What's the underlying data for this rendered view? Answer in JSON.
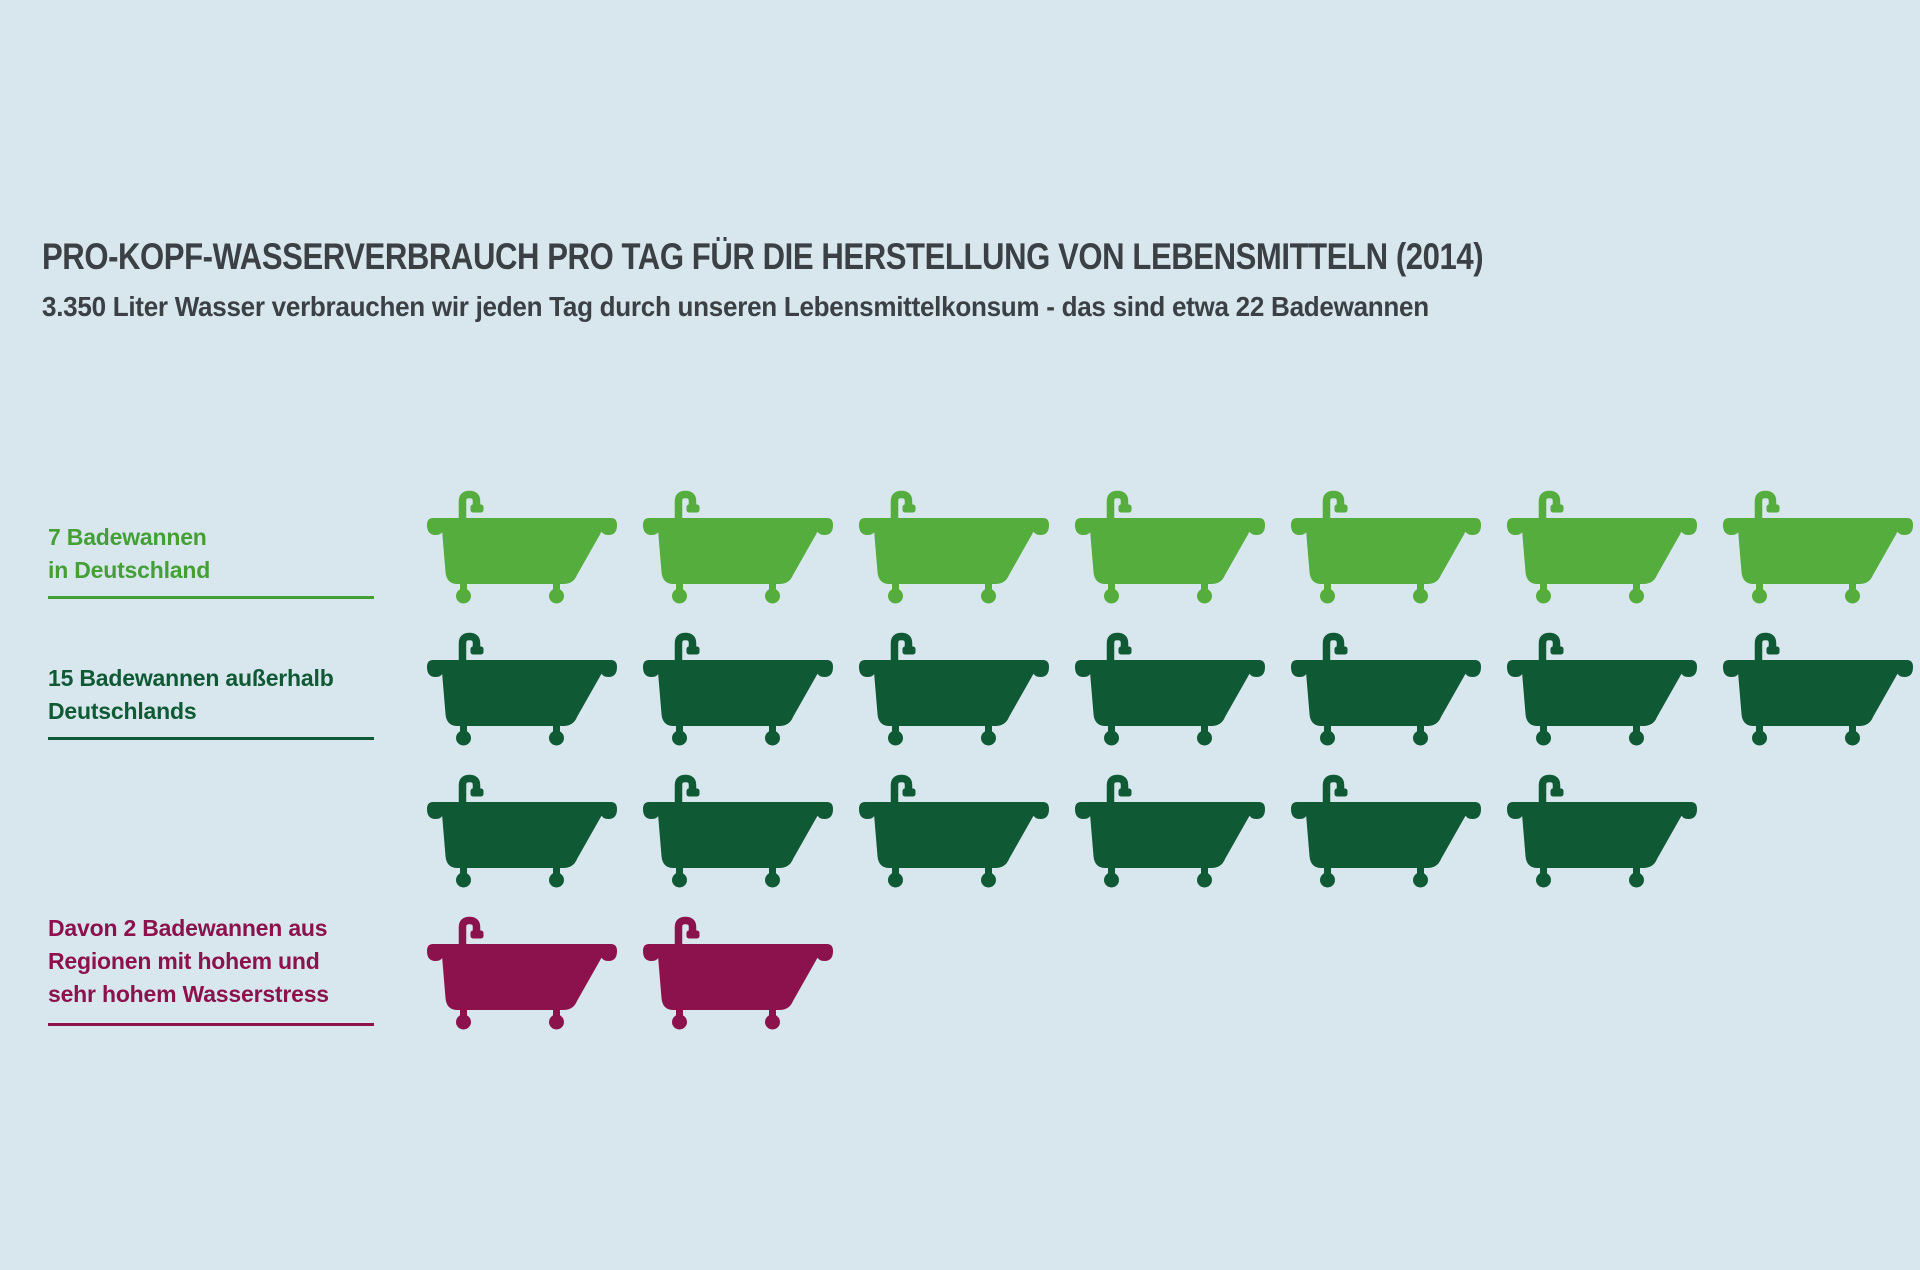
{
  "page": {
    "background": "#d8e7ed",
    "text_color": "#3b4045"
  },
  "header": {
    "title": "PRO-KOPF-WASSERVERBRAUCH PRO TAG FÜR DIE HERSTELLUNG VON LEBENSMITTELN (2014)",
    "subtitle": "3.350 Liter Wasser verbrauchen wir jeden Tag durch unseren Lebensmittelkonsum - das sind etwa 22 Badewannen"
  },
  "labels": [
    {
      "text": "7 Badewannen\nin Deutschland",
      "color": "#44a036"
    },
    {
      "text": "15 Badewannen außerhalb\nDeutschlands",
      "color": "#0f5a35"
    },
    {
      "text": "Davon 2 Badewannen aus\nRegionen mit hohem und\nsehr hohem Wasserstress",
      "color": "#8c124e"
    }
  ],
  "chart_data": {
    "type": "pictogram",
    "icon": "bathtub",
    "title": "PRO-KOPF-WASSERVERBRAUCH PRO TAG FÜR DIE HERSTELLUNG VON LEBENSMITTELN (2014)",
    "subtitle": "3.350 Liter Wasser verbrauchen wir jeden Tag durch unseren Lebensmittelkonsum - das sind etwa 22 Badewannen",
    "liters_per_day": "3.350",
    "year": "2014",
    "total_bathtubs": 22,
    "categories": [
      "7 Badewannen in Deutschland",
      "15 Badewannen außerhalb Deutschlands",
      "Davon 2 Badewannen aus Regionen mit hohem und sehr hohem Wasserstress"
    ],
    "values": [
      7,
      15,
      2
    ],
    "colors": [
      "#54ad3d",
      "#0f5a35",
      "#8c124e"
    ],
    "icon_rows": [
      {
        "count": 7,
        "color": "#54ad3d",
        "category": "in Deutschland"
      },
      {
        "count": 7,
        "color": "#0f5a35",
        "category": "außerhalb Deutschlands"
      },
      {
        "count": 6,
        "color": "#0f5a35",
        "category": "außerhalb Deutschlands"
      },
      {
        "count": 2,
        "color": "#8c124e",
        "category": "Regionen mit hohem und sehr hohem Wasserstress"
      }
    ]
  }
}
